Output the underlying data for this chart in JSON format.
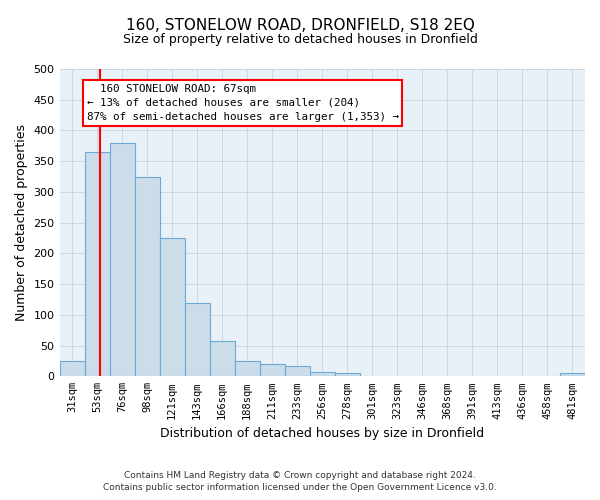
{
  "title": "160, STONELOW ROAD, DRONFIELD, S18 2EQ",
  "subtitle": "Size of property relative to detached houses in Dronfield",
  "xlabel": "Distribution of detached houses by size in Dronfield",
  "ylabel": "Number of detached properties",
  "footer_line1": "Contains HM Land Registry data © Crown copyright and database right 2024.",
  "footer_line2": "Contains public sector information licensed under the Open Government Licence v3.0.",
  "bin_labels": [
    "31sqm",
    "53sqm",
    "76sqm",
    "98sqm",
    "121sqm",
    "143sqm",
    "166sqm",
    "188sqm",
    "211sqm",
    "233sqm",
    "256sqm",
    "278sqm",
    "301sqm",
    "323sqm",
    "346sqm",
    "368sqm",
    "391sqm",
    "413sqm",
    "436sqm",
    "458sqm",
    "481sqm"
  ],
  "bar_values": [
    25,
    365,
    380,
    325,
    225,
    120,
    57,
    25,
    20,
    16,
    7,
    6,
    1,
    1,
    1,
    1,
    1,
    1,
    1,
    1,
    5
  ],
  "bar_color": "#ccdce8",
  "bar_edge_color": "#6aaad4",
  "property_sqm_label": "160 STONELOW ROAD: 67sqm",
  "annotation_line1": "← 13% of detached houses are smaller (204)",
  "annotation_line2": "87% of semi-detached houses are larger (1,353) →",
  "annotation_box_color": "white",
  "annotation_box_edge_color": "red",
  "vline_color": "red",
  "ylim": [
    0,
    500
  ],
  "yticks": [
    0,
    50,
    100,
    150,
    200,
    250,
    300,
    350,
    400,
    450,
    500
  ],
  "grid_color": "#c8d4e0",
  "background_color": "#e8f0f8"
}
